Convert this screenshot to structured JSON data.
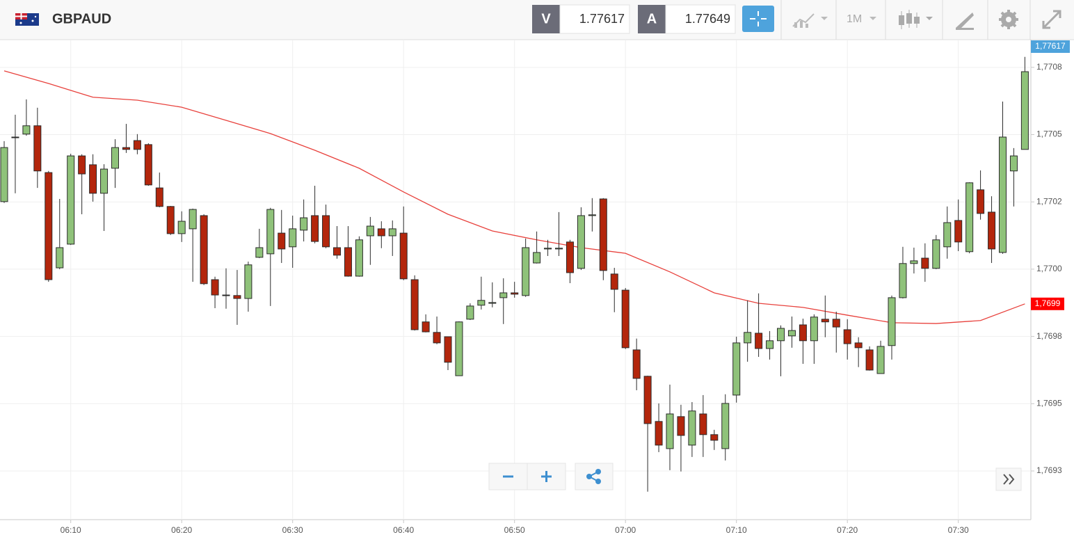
{
  "header": {
    "symbol": "GBPAUD",
    "sell_label": "V",
    "sell_price": "1.77617",
    "buy_label": "A",
    "buy_price": "1.77649",
    "timeframe": "1M"
  },
  "chart_data": {
    "type": "candlestick",
    "x": [
      "06:04",
      "06:05",
      "06:06",
      "06:07",
      "06:08",
      "06:09",
      "06:10",
      "06:11",
      "06:12",
      "06:13",
      "06:14",
      "06:15",
      "06:16",
      "06:17",
      "06:18",
      "06:19",
      "06:20",
      "06:21",
      "06:22",
      "06:23",
      "06:24",
      "06:25",
      "06:26",
      "06:27",
      "06:28",
      "06:29",
      "06:30",
      "06:31",
      "06:32",
      "06:33",
      "06:34",
      "06:35",
      "06:36",
      "06:37",
      "06:38",
      "06:39",
      "06:40",
      "06:41",
      "06:42",
      "06:43",
      "06:44",
      "06:45",
      "06:46",
      "06:47",
      "06:48",
      "06:49",
      "06:50",
      "06:51",
      "06:52",
      "06:53",
      "06:54",
      "06:55",
      "06:56",
      "06:57",
      "06:58",
      "06:59",
      "07:00",
      "07:01",
      "07:02",
      "07:03",
      "07:04",
      "07:05",
      "07:06",
      "07:07",
      "07:08",
      "07:09",
      "07:10",
      "07:11",
      "07:12",
      "07:13",
      "07:14",
      "07:15",
      "07:16",
      "07:17",
      "07:18",
      "07:19",
      "07:20",
      "07:21",
      "07:22",
      "07:23",
      "07:24",
      "07:25",
      "07:26",
      "07:27",
      "07:28",
      "07:29",
      "07:30",
      "07:31",
      "07:32",
      "07:33",
      "07:34",
      "07:35",
      "07:36"
    ],
    "open": [
      1.770251,
      1.770489,
      1.770502,
      1.770533,
      1.770359,
      1.770005,
      1.770093,
      1.770421,
      1.770388,
      1.770282,
      1.770375,
      1.770452,
      1.770478,
      1.770463,
      1.770302,
      1.770233,
      1.770132,
      1.77015,
      1.770199,
      1.769961,
      1.769902,
      1.769902,
      1.769891,
      1.770044,
      1.770057,
      1.770134,
      1.770083,
      1.770145,
      1.770199,
      1.770199,
      1.77008,
      1.77008,
      1.769974,
      1.770124,
      1.77015,
      1.770124,
      1.770134,
      1.769961,
      1.769804,
      1.769765,
      1.769749,
      1.769604,
      1.769814,
      1.769866,
      1.769873,
      1.769894,
      1.769912,
      1.769902,
      1.770023,
      1.770075,
      1.770075,
      1.770101,
      1.770003,
      1.770199,
      1.770261,
      1.769982,
      1.769922,
      1.7697,
      1.769602,
      1.769434,
      1.769333,
      1.769452,
      1.769346,
      1.769462,
      1.769385,
      1.769333,
      1.769532,
      1.769726,
      1.769762,
      1.769705,
      1.769734,
      1.769752,
      1.769793,
      1.769734,
      1.769814,
      1.769814,
      1.769775,
      1.769726,
      1.7697,
      1.769612,
      1.769716,
      1.769894,
      1.770021,
      1.770041,
      1.770003,
      1.770083,
      1.770181,
      1.770065,
      1.770295,
      1.770212,
      1.770062,
      1.770365,
      1.770445
    ],
    "high": [
      1.770476,
      1.770574,
      1.770631,
      1.7706,
      1.770365,
      1.770261,
      1.770429,
      1.770427,
      1.770427,
      1.77039,
      1.770483,
      1.77054,
      1.770502,
      1.770468,
      1.770359,
      1.770235,
      1.770215,
      1.770225,
      1.770204,
      1.769972,
      1.770003,
      1.769997,
      1.770028,
      1.77015,
      1.770228,
      1.77022,
      1.770199,
      1.770259,
      1.77031,
      1.77024,
      1.77016,
      1.77016,
      1.770122,
      1.770194,
      1.770178,
      1.770181,
      1.770233,
      1.769977,
      1.769832,
      1.769824,
      1.769749,
      1.769806,
      1.769873,
      1.769972,
      1.769951,
      1.769966,
      1.769953,
      1.770114,
      1.77014,
      1.770109,
      1.770212,
      1.770109,
      1.77023,
      1.770264,
      1.770264,
      1.770005,
      1.76993,
      1.769742,
      1.769604,
      1.769501,
      1.769571,
      1.769496,
      1.769506,
      1.769532,
      1.769403,
      1.769535,
      1.769749,
      1.769884,
      1.76991,
      1.76977,
      1.769791,
      1.769824,
      1.769816,
      1.769832,
      1.769902,
      1.769842,
      1.769814,
      1.769747,
      1.769713,
      1.769734,
      1.769902,
      1.770083,
      1.77008,
      1.770096,
      1.770127,
      1.770233,
      1.770259,
      1.770323,
      1.770367,
      1.770271,
      1.770623,
      1.77045,
      1.770789
    ],
    "low": [
      1.770246,
      1.770282,
      1.770496,
      1.770302,
      1.769953,
      1.77,
      1.77009,
      1.770204,
      1.770251,
      1.770142,
      1.770302,
      1.770432,
      1.770427,
      1.77031,
      1.77023,
      1.770127,
      1.770101,
      1.769953,
      1.769941,
      1.769855,
      1.769853,
      1.769793,
      1.769842,
      1.770041,
      1.769863,
      1.770023,
      1.770005,
      1.770103,
      1.770096,
      1.770078,
      1.770039,
      1.769972,
      1.769972,
      1.770016,
      1.770078,
      1.770049,
      1.769959,
      1.769772,
      1.769765,
      1.769721,
      1.769625,
      1.769604,
      1.769811,
      1.76985,
      1.769858,
      1.769796,
      1.769894,
      1.769897,
      1.770021,
      1.770049,
      1.770049,
      1.769948,
      1.769997,
      1.77014,
      1.769959,
      1.76984,
      1.769703,
      1.76955,
      1.769173,
      1.76932,
      1.769253,
      1.769248,
      1.769302,
      1.769302,
      1.769328,
      1.769289,
      1.769504,
      1.769656,
      1.769674,
      1.769664,
      1.769602,
      1.769708,
      1.769648,
      1.769648,
      1.769747,
      1.76969,
      1.769664,
      1.769636,
      1.769623,
      1.769612,
      1.769664,
      1.769891,
      1.769984,
      1.769953,
      1.77,
      1.770039,
      1.770067,
      1.770059,
      1.770184,
      1.770023,
      1.770057,
      1.770233,
      1.770445
    ],
    "close": [
      1.770452,
      1.770491,
      1.770533,
      1.770365,
      1.769961,
      1.77008,
      1.770421,
      1.770354,
      1.770282,
      1.770372,
      1.770452,
      1.770445,
      1.770445,
      1.770313,
      1.770233,
      1.770132,
      1.770178,
      1.770222,
      1.769946,
      1.769904,
      1.769904,
      1.769891,
      1.770016,
      1.77008,
      1.770222,
      1.770075,
      1.77015,
      1.770191,
      1.770103,
      1.770083,
      1.770052,
      1.769974,
      1.770109,
      1.77016,
      1.770124,
      1.77015,
      1.769964,
      1.769775,
      1.769767,
      1.769726,
      1.769654,
      1.769804,
      1.769863,
      1.769884,
      1.769876,
      1.769912,
      1.769907,
      1.77008,
      1.770062,
      1.770078,
      1.770078,
      1.769987,
      1.770199,
      1.770202,
      1.769995,
      1.769925,
      1.769708,
      1.769594,
      1.769426,
      1.769346,
      1.769462,
      1.769382,
      1.769473,
      1.769385,
      1.769364,
      1.769501,
      1.769726,
      1.769765,
      1.769705,
      1.769734,
      1.76978,
      1.769772,
      1.769734,
      1.769822,
      1.769804,
      1.769785,
      1.769723,
      1.769708,
      1.769625,
      1.769713,
      1.769894,
      1.770021,
      1.770031,
      1.770003,
      1.770109,
      1.770173,
      1.770101,
      1.770321,
      1.770207,
      1.770075,
      1.770491,
      1.770421,
      1.770734
    ],
    "up_color": "#8fc27a",
    "down_color": "#b3260c",
    "overlay": {
      "color": "#e8413c",
      "x": [
        "06:04",
        "06:08",
        "06:12",
        "06:16",
        "06:20",
        "06:24",
        "06:28",
        "06:32",
        "06:36",
        "06:40",
        "06:44",
        "06:48",
        "06:52",
        "06:56",
        "07:00",
        "07:04",
        "07:08",
        "07:12",
        "07:16",
        "07:20",
        "07:24",
        "07:28",
        "07:32",
        "07:36"
      ],
      "values": [
        1.770737,
        1.77069,
        1.770639,
        1.770628,
        1.770602,
        1.770553,
        1.770504,
        1.770442,
        1.770375,
        1.770287,
        1.770204,
        1.770142,
        1.770109,
        1.77008,
        1.770059,
        1.76999,
        1.769912,
        1.769873,
        1.769858,
        1.769829,
        1.769801,
        1.769798,
        1.769809,
        1.769871
      ],
      "value_label": "1,7699"
    },
    "price_label": "1,77617",
    "ylim": [
      1.769069,
      1.770853
    ],
    "yticks": [
      {
        "value": 1.77075,
        "label": "1,7708"
      },
      {
        "value": 1.7705,
        "label": "1,7705"
      },
      {
        "value": 1.77025,
        "label": "1,7702"
      },
      {
        "value": 1.77,
        "label": "1,7700"
      },
      {
        "value": 1.76975,
        "label": "1,7698"
      },
      {
        "value": 1.7695,
        "label": "1,7695"
      },
      {
        "value": 1.76925,
        "label": "1,7693"
      }
    ],
    "xticks": [
      "06:10",
      "06:20",
      "06:30",
      "06:40",
      "06:50",
      "07:00",
      "07:10",
      "07:20",
      "07:30"
    ],
    "grid": true
  }
}
